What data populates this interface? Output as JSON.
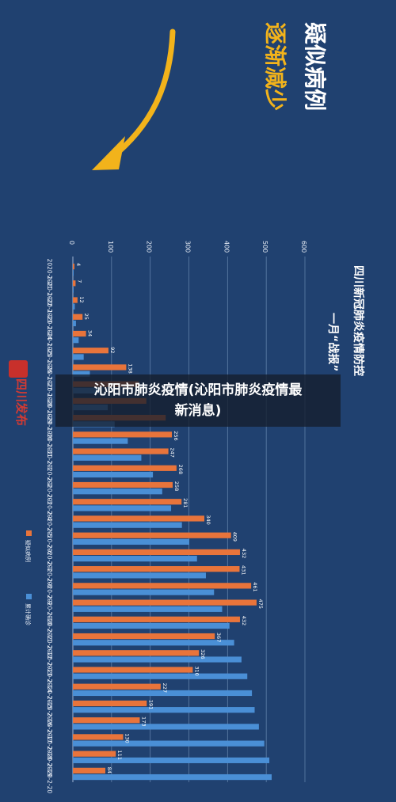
{
  "overlay": {
    "line1": "沁阳市肺炎疫情(沁阳市肺炎疫情最",
    "line2": "新消息)"
  },
  "banner": {
    "headline_part1": "疑似病例",
    "headline_part2": "逐渐减少",
    "arrow_color": "#f2b31b"
  },
  "logo_text": "四川发布",
  "chart_data": {
    "type": "bar",
    "orientation": "horizontal-rotated",
    "title_line1": "四川新冠肺炎疫情防控",
    "title_line2": "一月“战报”",
    "xlim": [
      0,
      600
    ],
    "ticks": [
      "0",
      "100",
      "200",
      "300",
      "400",
      "500",
      "600"
    ],
    "grid": true,
    "legend_position": "bottom",
    "categories": [
      "2020-1-21",
      "2020-1-22",
      "2020-1-23",
      "2020-1-24",
      "2020-1-25",
      "2020-1-26",
      "2020-1-27",
      "2020-1-28",
      "2020-1-29",
      "2020-1-30",
      "2020-1-31",
      "2020-2-1",
      "2020-2-2",
      "2020-2-3",
      "2020-2-4",
      "2020-2-5",
      "2020-2-6",
      "2020-2-7",
      "2020-2-8",
      "2020-2-9",
      "2020-2-10",
      "2020-2-11",
      "2020-2-12",
      "2020-2-13",
      "2020-2-14",
      "2020-2-15",
      "2020-2-16",
      "2020-2-17",
      "2020-2-18",
      "2020-2-19",
      "2020-2-20"
    ],
    "series": [
      {
        "name": "疑似病例",
        "color": "#e8743b",
        "values": [
          4,
          7,
          12,
          25,
          34,
          92,
          138,
          170,
          190,
          240,
          256,
          247,
          268,
          258,
          281,
          340,
          409,
          432,
          431,
          461,
          475,
          432,
          367,
          326,
          310,
          227,
          191,
          173,
          130,
          111,
          84
        ]
      },
      {
        "name": "累计确诊",
        "color": "#4a8fd6",
        "values": [
          1,
          2,
          5,
          8,
          15,
          28,
          44,
          69,
          90,
          108,
          142,
          177,
          207,
          231,
          254,
          282,
          301,
          321,
          344,
          365,
          386,
          405,
          417,
          436,
          451,
          463,
          470,
          481,
          495,
          508,
          514
        ]
      }
    ],
    "data_labels": [
      "4",
      "7",
      "12",
      "25",
      "34",
      "92",
      "138",
      "",
      "",
      "",
      "256",
      "247",
      "268",
      "258",
      "281",
      "340",
      "409",
      "432",
      "431",
      "461",
      "475",
      "432",
      "367",
      "326",
      "310",
      "227",
      "191",
      "173",
      "130",
      "111",
      "84"
    ]
  }
}
